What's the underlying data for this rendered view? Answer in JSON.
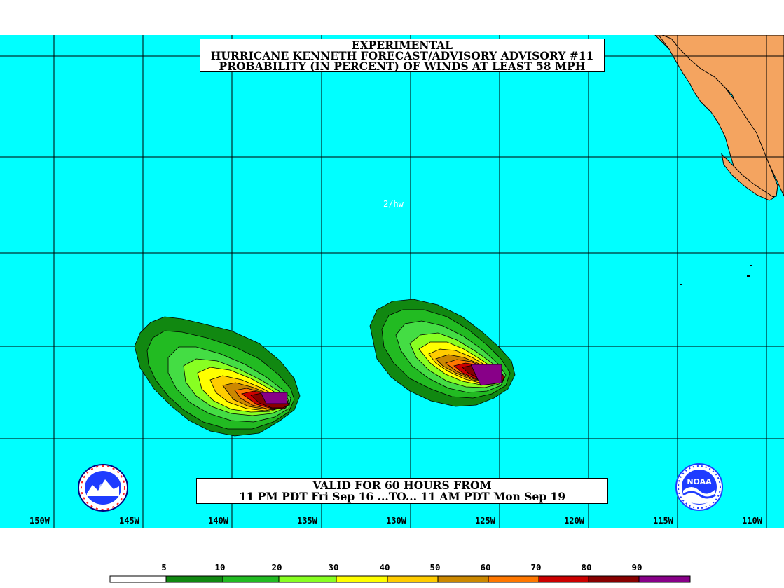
{
  "title": {
    "line1": "EXPERIMENTAL",
    "line2": "HURRICANE KENNETH FORECAST/ADVISORY ADVISORY #11",
    "line3": "PROBABILITY (IN PERCENT) OF WINDS AT LEAST 58 MPH"
  },
  "valid": {
    "line1": "VALID FOR 60 HOURS FROM",
    "line2": "11 PM PDT Fri Sep 16 ...TO... 11 AM PDT Mon Sep 19"
  },
  "annotation": "2/hw",
  "longitude_labels": [
    "150W",
    "145W",
    "140W",
    "135W",
    "130W",
    "125W",
    "120W",
    "115W",
    "110W"
  ],
  "legend": {
    "thresholds": [
      "5",
      "10",
      "20",
      "30",
      "40",
      "50",
      "60",
      "70",
      "80",
      "90"
    ],
    "colors": [
      "#ffffff",
      "#118811",
      "#22bb22",
      "#44dd44",
      "#88ff22",
      "#ffff00",
      "#ffcc00",
      "#cc8800",
      "#ff7700",
      "#cc0000",
      "#880000",
      "#880088"
    ]
  },
  "colors": {
    "ocean": "#00ffff",
    "land": "#f4a460",
    "grid": "#000000"
  },
  "logos": {
    "left": "national-weather-service-logo",
    "right": "noaa-logo",
    "right_text": "NOAA"
  }
}
